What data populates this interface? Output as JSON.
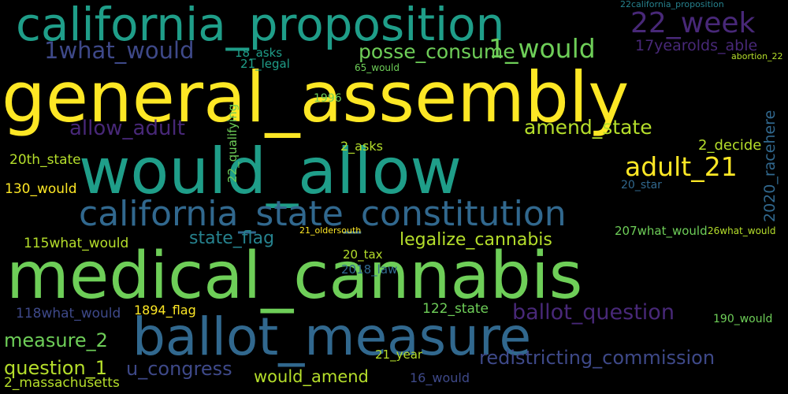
{
  "palette": {
    "yellow": "#fde725",
    "lime": "#b5de2b",
    "green": "#6ece58",
    "teal": "#1f9e89",
    "cyan": "#26828e",
    "blue": "#31688e",
    "indigo": "#3e4989",
    "purple": "#482878",
    "dark": "#440154"
  },
  "words": [
    {
      "text": "general_assembly"
    },
    {
      "text": "would_allow"
    },
    {
      "text": "medical_cannabis"
    },
    {
      "text": "ballot_measure"
    },
    {
      "text": "california_proposition"
    },
    {
      "text": "california_state_constitution"
    },
    {
      "text": "1what_would"
    },
    {
      "text": "posse_consume"
    },
    {
      "text": "1_would"
    },
    {
      "text": "22_week"
    },
    {
      "text": "17yearolds_able"
    },
    {
      "text": "allow_adult"
    },
    {
      "text": "amend_state"
    },
    {
      "text": "adult_21"
    },
    {
      "text": "state_flag"
    },
    {
      "text": "legalize_cannabis"
    },
    {
      "text": "ballot_question"
    },
    {
      "text": "measure_2"
    },
    {
      "text": "question_1"
    },
    {
      "text": "u_congress"
    },
    {
      "text": "would_amend"
    },
    {
      "text": "redistricting_commission"
    },
    {
      "text": "2_massachusetts"
    },
    {
      "text": "16_would"
    },
    {
      "text": "21_year"
    },
    {
      "text": "2_decide"
    },
    {
      "text": "2020_racehere"
    },
    {
      "text": "20th_state"
    },
    {
      "text": "130_would"
    },
    {
      "text": "115what_would"
    },
    {
      "text": "118what_would"
    },
    {
      "text": "1894_flag"
    },
    {
      "text": "122_state"
    },
    {
      "text": "207what_would"
    },
    {
      "text": "26what_would"
    },
    {
      "text": "190_would"
    },
    {
      "text": "20_tax"
    },
    {
      "text": "2018_law"
    },
    {
      "text": "21_oldersouth"
    },
    {
      "text": "2_asks"
    },
    {
      "text": "20_star"
    },
    {
      "text": "18_asks"
    },
    {
      "text": "21_legal"
    },
    {
      "text": "65_would"
    },
    {
      "text": "22_qualifying"
    },
    {
      "text": "1996"
    },
    {
      "text": "22california_proposition"
    },
    {
      "text": "abortion_22"
    }
  ]
}
